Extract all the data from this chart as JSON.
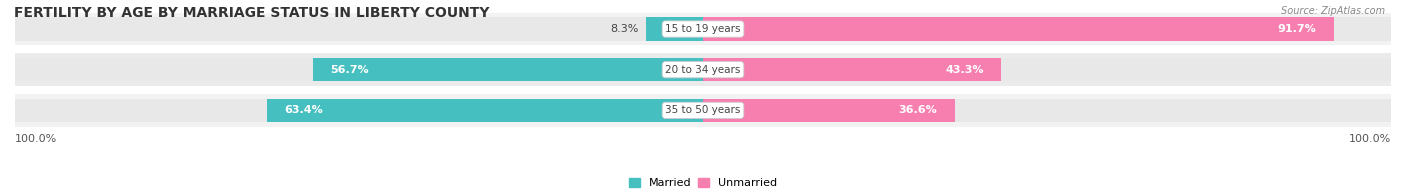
{
  "title": "FERTILITY BY AGE BY MARRIAGE STATUS IN LIBERTY COUNTY",
  "source": "Source: ZipAtlas.com",
  "age_groups": [
    "15 to 19 years",
    "20 to 34 years",
    "35 to 50 years"
  ],
  "married_pct": [
    8.3,
    56.7,
    63.4
  ],
  "unmarried_pct": [
    91.7,
    43.3,
    36.6
  ],
  "married_color": "#45bfbf",
  "unmarried_color": "#f77fb0",
  "track_color": "#e8e8e8",
  "row_bg_even": "#f2f2f2",
  "row_bg_odd": "#ebebeb",
  "title_fontsize": 10,
  "label_fontsize": 8,
  "source_fontsize": 7,
  "bar_height": 0.58,
  "legend_married": "Married",
  "legend_unmarried": "Unmarried",
  "bottom_label": "100.0%"
}
